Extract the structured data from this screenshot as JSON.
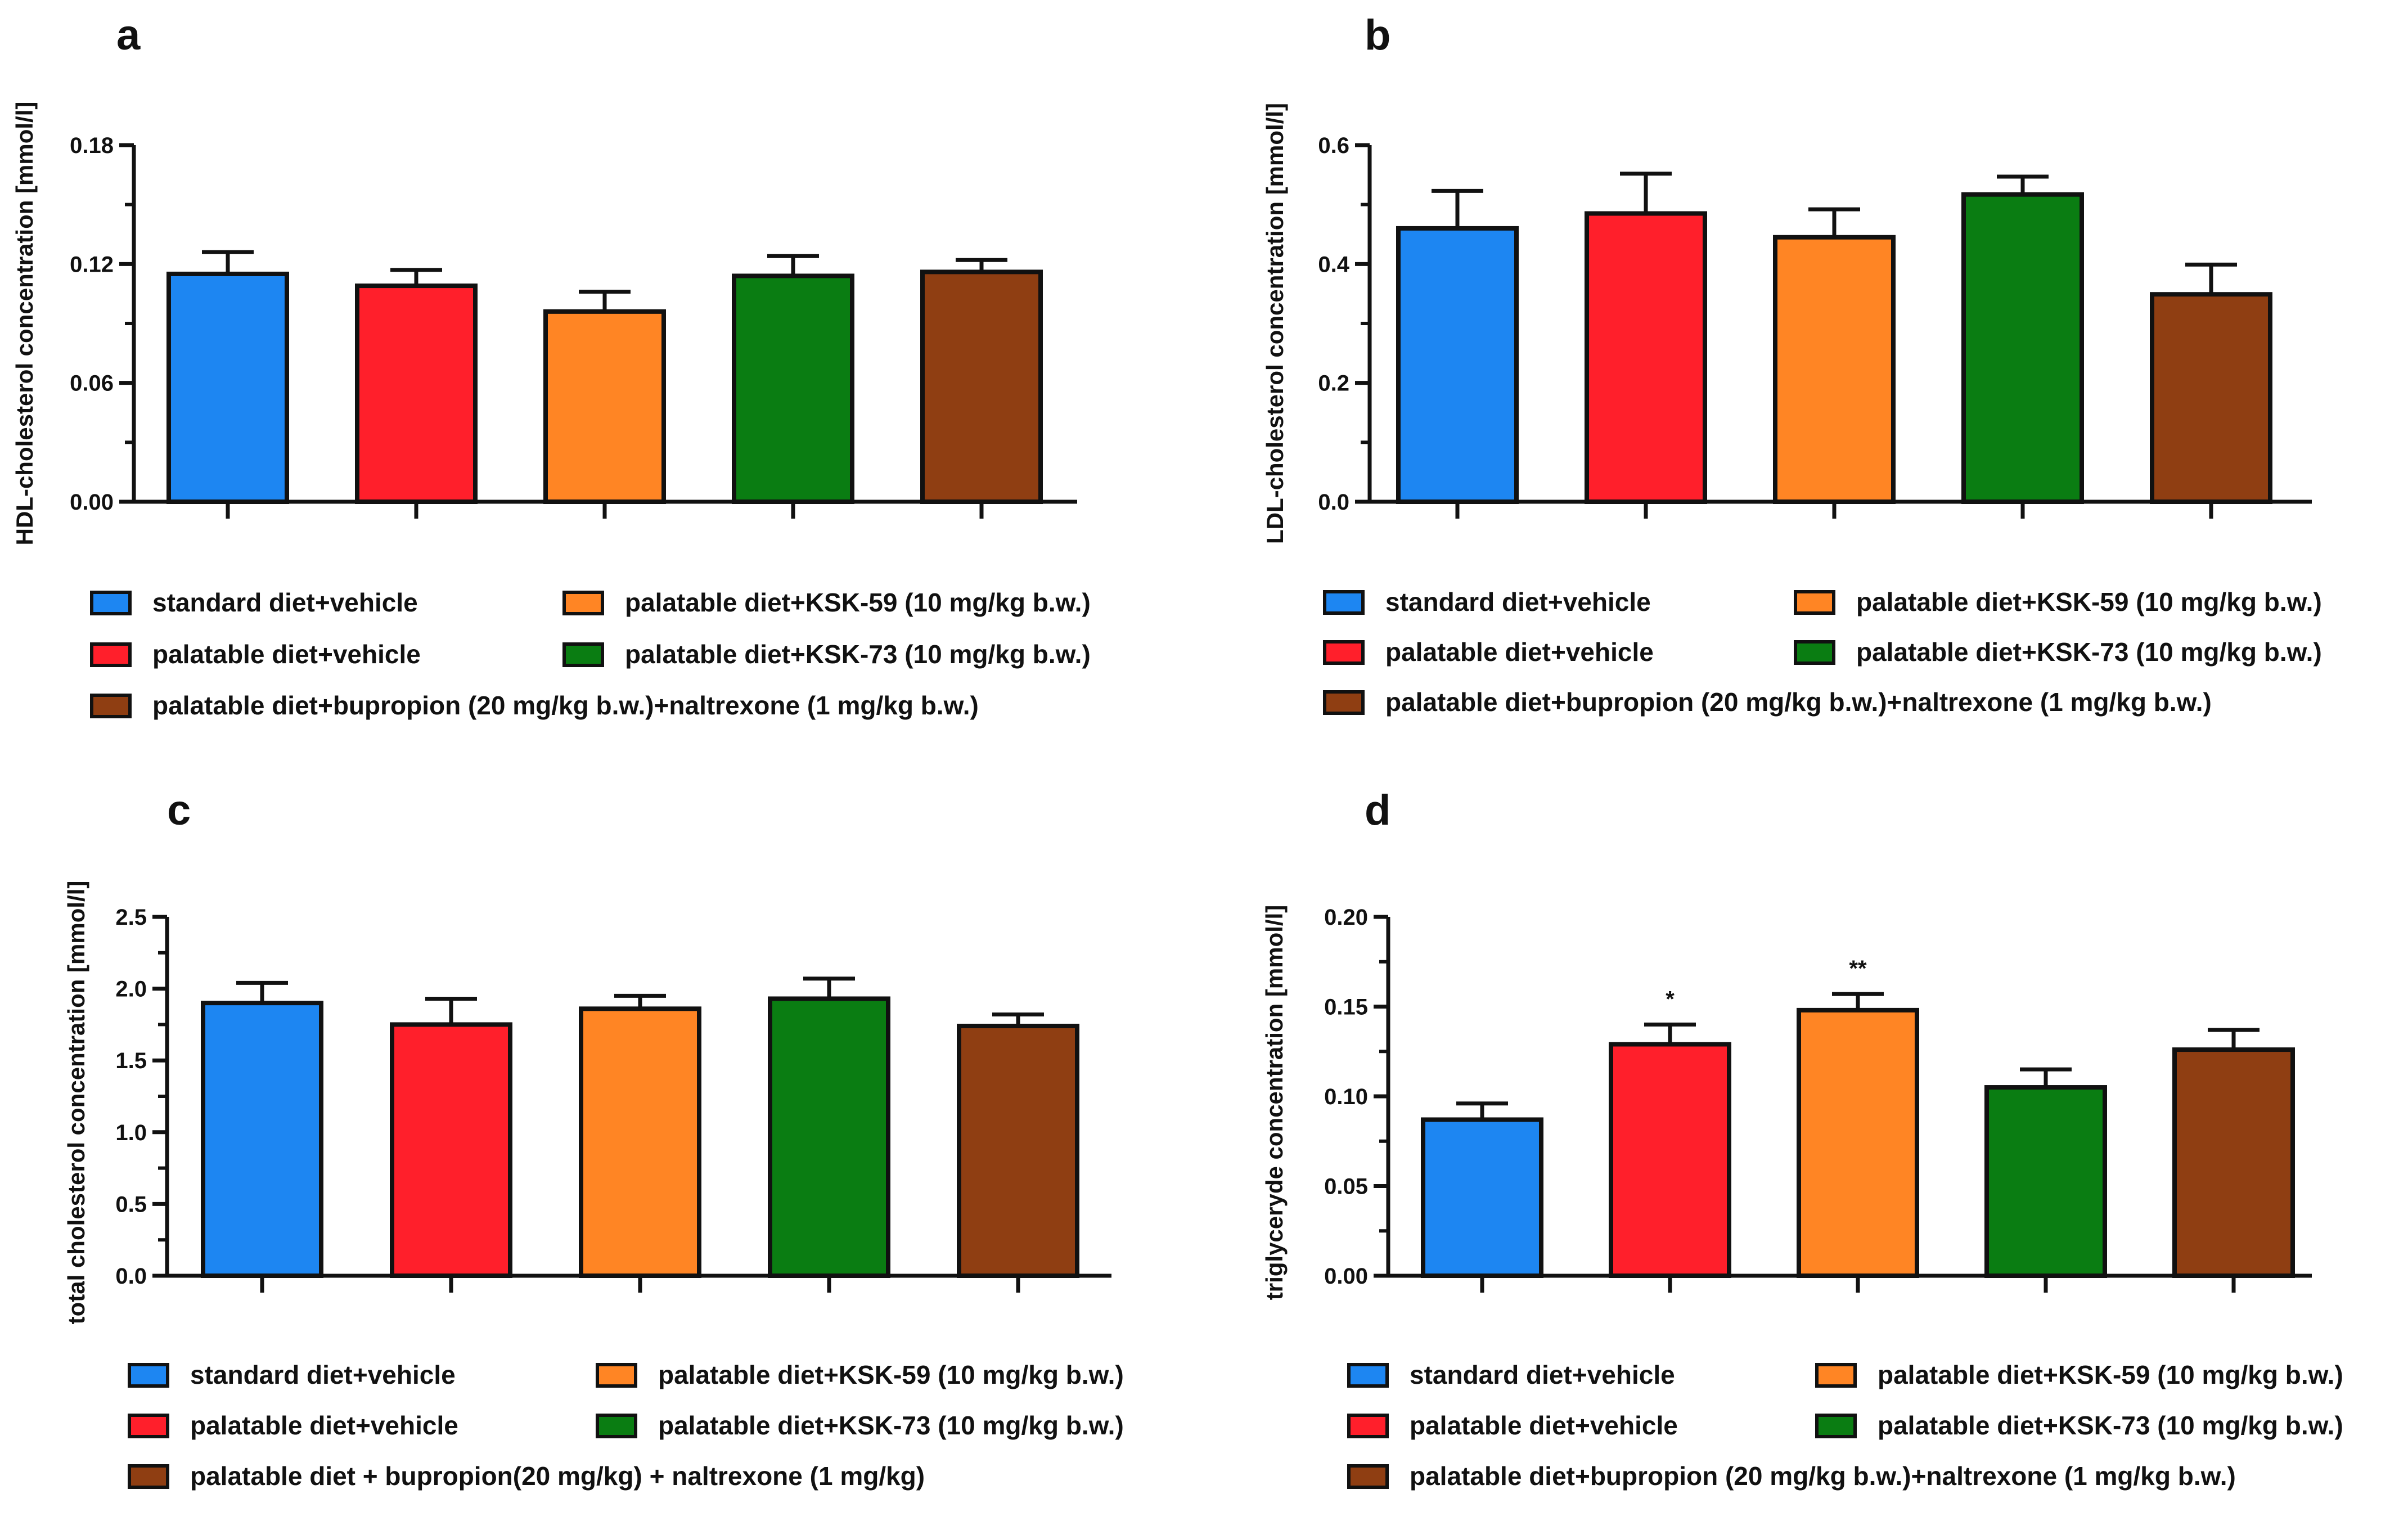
{
  "colors": {
    "axis": "#111111",
    "standard_vehicle": "#1d86f2",
    "palatable_vehicle": "#ff1f2b",
    "ksk59": "#ff8524",
    "ksk73": "#0a7d12",
    "bupropion_naltrexone": "#8f3e12"
  },
  "chart_data": [
    {
      "panel": "a",
      "type": "bar",
      "ylabel": "HDL-cholesterol concentration [mmol/l]",
      "ylim": [
        0,
        0.18
      ],
      "yticks": [
        0,
        0.06,
        0.12,
        0.18
      ],
      "ytick_labels": [
        "0.00",
        "0.06",
        "0.12",
        "0.18"
      ],
      "categories": [
        "standard diet+vehicle",
        "palatable diet+vehicle",
        "palatable diet+KSK-59 (10 mg/kg b.w.)",
        "palatable diet+KSK-73 (10 mg/kg b.w.)",
        "palatable diet+bupropion (20 mg/kg b.w.)+naltrexone (1 mg/kg b.w.)"
      ],
      "values": [
        0.115,
        0.109,
        0.096,
        0.114,
        0.116
      ],
      "errors": [
        0.011,
        0.008,
        0.01,
        0.01,
        0.006
      ],
      "annotations": [
        "",
        "",
        "",
        "",
        ""
      ],
      "legend": [
        "standard diet+vehicle",
        "palatable diet+vehicle",
        "palatable diet+KSK-59 (10 mg/kg b.w.)",
        "palatable diet+KSK-73 (10 mg/kg b.w.)",
        "palatable diet+bupropion (20 mg/kg b.w.)+naltrexone (1 mg/kg b.w.)"
      ]
    },
    {
      "panel": "b",
      "type": "bar",
      "ylabel": "LDL-cholesterol concentration [mmol/l]",
      "ylim": [
        0,
        0.6
      ],
      "yticks": [
        0,
        0.2,
        0.4,
        0.6
      ],
      "ytick_labels": [
        "0.0",
        "0.2",
        "0.4",
        "0.6"
      ],
      "categories": [
        "standard diet+vehicle",
        "palatable diet+vehicle",
        "palatable diet+KSK-59 (10 mg/kg b.w.)",
        "palatable diet+KSK-73 (10 mg/kg b.w.)",
        "palatable diet+bupropion (20 mg/kg b.w.)+naltrexone (1 mg/kg b.w.)"
      ],
      "values": [
        0.46,
        0.485,
        0.445,
        0.517,
        0.349
      ],
      "errors": [
        0.063,
        0.067,
        0.047,
        0.03,
        0.05
      ],
      "annotations": [
        "",
        "",
        "",
        "",
        ""
      ],
      "legend": [
        "standard diet+vehicle",
        "palatable diet+vehicle",
        "palatable diet+KSK-59 (10 mg/kg b.w.)",
        "palatable diet+KSK-73 (10 mg/kg b.w.)",
        "palatable diet+bupropion (20 mg/kg b.w.)+naltrexone (1 mg/kg b.w.)"
      ]
    },
    {
      "panel": "c",
      "type": "bar",
      "ylabel": "total cholesterol concentration [mmol/l]",
      "ylim": [
        0,
        2.5
      ],
      "yticks": [
        0,
        0.5,
        1.0,
        1.5,
        2.0,
        2.5
      ],
      "ytick_labels": [
        "0.0",
        "0.5",
        "1.0",
        "1.5",
        "2.0",
        "2.5"
      ],
      "categories": [
        "standard diet+vehicle",
        "palatable diet+vehicle",
        "palatable diet+KSK-59 (10 mg/kg b.w.)",
        "palatable diet+KSK-73 (10 mg/kg b.w.)",
        "palatable diet + bupropion(20 mg/kg) + naltrexone (1 mg/kg)"
      ],
      "values": [
        1.9,
        1.75,
        1.86,
        1.93,
        1.74
      ],
      "errors": [
        0.14,
        0.18,
        0.09,
        0.14,
        0.08
      ],
      "annotations": [
        "",
        "",
        "",
        "",
        ""
      ],
      "legend": [
        "standard diet+vehicle",
        "palatable diet+vehicle",
        "palatable diet+KSK-59 (10 mg/kg b.w.)",
        "palatable diet+KSK-73 (10 mg/kg b.w.)",
        "palatable diet + bupropion(20 mg/kg) + naltrexone (1 mg/kg)"
      ]
    },
    {
      "panel": "d",
      "type": "bar",
      "ylabel": "triglyceryde concentration [mmol/l]",
      "ylim": [
        0,
        0.2
      ],
      "yticks": [
        0,
        0.05,
        0.1,
        0.15,
        0.2
      ],
      "ytick_labels": [
        "0.00",
        "0.05",
        "0.10",
        "0.15",
        "0.20"
      ],
      "categories": [
        "standard diet+vehicle",
        "palatable diet+vehicle",
        "palatable diet+KSK-59 (10 mg/kg b.w.)",
        "palatable diet+KSK-73 (10 mg/kg b.w.)",
        "palatable diet+bupropion (20 mg/kg b.w.)+naltrexone (1 mg/kg b.w.)"
      ],
      "values": [
        0.087,
        0.129,
        0.148,
        0.105,
        0.126
      ],
      "errors": [
        0.009,
        0.011,
        0.009,
        0.01,
        0.011
      ],
      "annotations": [
        "",
        "*",
        "**",
        "",
        ""
      ],
      "legend": [
        "standard diet+vehicle",
        "palatable diet+vehicle",
        "palatable diet+KSK-59 (10 mg/kg b.w.)",
        "palatable diet+KSK-73 (10 mg/kg b.w.)",
        "palatable diet+bupropion (20 mg/kg b.w.)+naltrexone (1 mg/kg b.w.)"
      ]
    }
  ]
}
